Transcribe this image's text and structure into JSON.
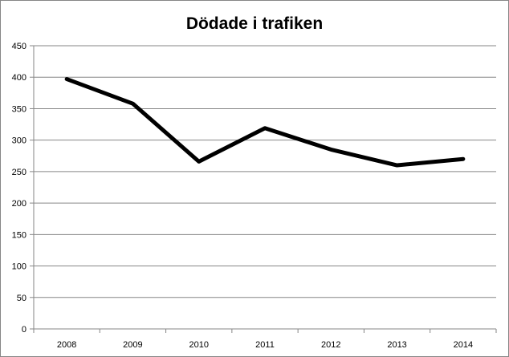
{
  "chart_data": {
    "type": "line",
    "title": "Dödade i trafiken",
    "xlabel": "",
    "ylabel": "",
    "categories": [
      "2008",
      "2009",
      "2010",
      "2011",
      "2012",
      "2013",
      "2014"
    ],
    "series": [
      {
        "values": [
          397,
          358,
          266,
          319,
          285,
          260,
          270
        ]
      }
    ],
    "ylim": [
      0,
      450
    ],
    "yticks": [
      "0",
      "50",
      "100",
      "150",
      "200",
      "250",
      "300",
      "350",
      "400",
      "450"
    ],
    "grid": true,
    "legend": "none",
    "line_color": "#000000",
    "grid_color": "#868686"
  }
}
